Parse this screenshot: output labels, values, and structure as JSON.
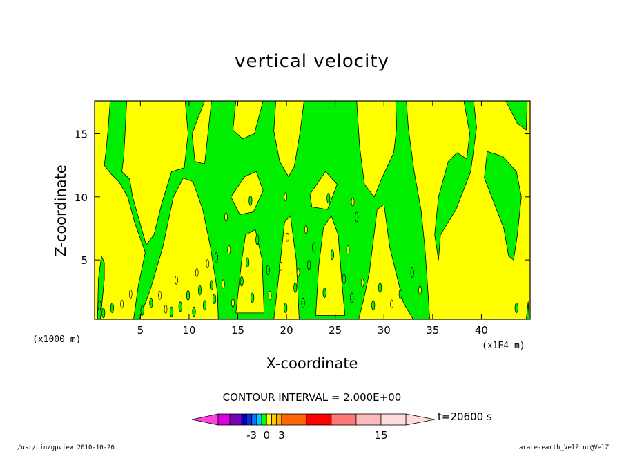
{
  "chart_data": {
    "type": "heatmap",
    "title": "vertical velocity",
    "xlabel": "X-coordinate",
    "ylabel": "Z-coordinate",
    "x_unit_left": "(x1000 m)",
    "x_unit_right": "(x1E4 m)",
    "xlim": [
      0.3,
      45
    ],
    "ylim": [
      0.3,
      17.6
    ],
    "x_ticks": [
      5,
      10,
      15,
      20,
      25,
      30,
      35,
      40
    ],
    "y_ticks": [
      5,
      10,
      15
    ],
    "contour_interval": "CONTOUR INTERVAL = 2.000E+00",
    "time_label": "t=20600 s",
    "colorbar": {
      "labels": [
        {
          "value": "-3",
          "at": -3
        },
        {
          "value": "0",
          "at": 0
        },
        {
          "value": "3",
          "at": 3
        },
        {
          "value": "15",
          "at": 15
        }
      ],
      "levels": [
        {
          "lo": -9,
          "hi": -7,
          "color": "#dd00dd"
        },
        {
          "lo": -7,
          "hi": -5,
          "color": "#7700bb"
        },
        {
          "lo": -5,
          "hi": -4,
          "color": "#0000bb"
        },
        {
          "lo": -4,
          "hi": -3,
          "color": "#0033dd"
        },
        {
          "lo": -3,
          "hi": -2,
          "color": "#0077ff"
        },
        {
          "lo": -2,
          "hi": -1,
          "color": "#00ccff"
        },
        {
          "lo": -1,
          "hi": 0,
          "color": "#00ff00"
        },
        {
          "lo": 0,
          "hi": 1,
          "color": "#ffff00"
        },
        {
          "lo": 1,
          "hi": 2,
          "color": "#ffcc00"
        },
        {
          "lo": 2,
          "hi": 3,
          "color": "#ffaa00"
        },
        {
          "lo": 3,
          "hi": 6,
          "color": "#ff6600"
        },
        {
          "lo": 6,
          "hi": 9,
          "color": "#ff0000"
        },
        {
          "lo": 9,
          "hi": 12,
          "color": "#ff7777"
        },
        {
          "lo": 12,
          "hi": 15,
          "color": "#ffbbbb"
        },
        {
          "lo": 15,
          "hi": 18,
          "color": "#ffdddd"
        }
      ],
      "left_arrow_color": "#ff44dd",
      "right_arrow_color": "#ffdddd"
    },
    "field_colors": {
      "positive": "#ffff00",
      "negative": "#00ee00"
    },
    "negative_regions_note_free": true,
    "negative_regions": [
      [
        [
          1.5,
          13.8
        ],
        [
          1.7,
          15.5
        ],
        [
          1.9,
          17.6
        ],
        [
          3.6,
          17.6
        ],
        [
          3.3,
          13.2
        ],
        [
          3.1,
          12.0
        ],
        [
          3.9,
          11.4
        ],
        [
          4.2,
          10.0
        ],
        [
          5.3,
          7.0
        ],
        [
          5.6,
          6.2
        ],
        [
          6.4,
          7.0
        ],
        [
          7.2,
          9.5
        ],
        [
          8.2,
          12.0
        ],
        [
          9.5,
          12.3
        ],
        [
          9.9,
          15.0
        ],
        [
          9.6,
          17.6
        ],
        [
          11.6,
          17.6
        ],
        [
          10.3,
          15.0
        ],
        [
          10.6,
          12.8
        ],
        [
          11.6,
          12.6
        ],
        [
          12.3,
          17.6
        ],
        [
          14.8,
          17.6
        ],
        [
          14.5,
          15.3
        ],
        [
          15.5,
          14.6
        ],
        [
          16.7,
          15.0
        ],
        [
          17.6,
          17.6
        ],
        [
          18.9,
          17.6
        ],
        [
          18.7,
          15.2
        ],
        [
          19.3,
          12.8
        ],
        [
          20.2,
          11.6
        ],
        [
          20.8,
          12.4
        ],
        [
          21.4,
          15.2
        ],
        [
          21.8,
          17.6
        ],
        [
          27.2,
          17.6
        ],
        [
          27.5,
          14.0
        ],
        [
          28.0,
          11.0
        ],
        [
          29.0,
          10.0
        ],
        [
          29.8,
          11.5
        ],
        [
          31.0,
          13.5
        ],
        [
          31.3,
          15.5
        ],
        [
          31.2,
          17.6
        ],
        [
          32.3,
          17.6
        ],
        [
          32.5,
          15.5
        ],
        [
          33.1,
          12.0
        ],
        [
          33.8,
          9.0
        ],
        [
          34.2,
          6.0
        ],
        [
          34.4,
          3.8
        ],
        [
          34.7,
          0.3
        ],
        [
          33.0,
          0.3
        ],
        [
          32.0,
          1.6
        ],
        [
          30.6,
          6.0
        ],
        [
          30.0,
          9.4
        ],
        [
          29.3,
          9.0
        ],
        [
          28.5,
          4.0
        ],
        [
          27.9,
          1.8
        ],
        [
          27.4,
          0.3
        ],
        [
          21.3,
          0.3
        ],
        [
          21.0,
          5.0
        ],
        [
          20.4,
          8.5
        ],
        [
          19.8,
          8.0
        ],
        [
          19.1,
          3.0
        ],
        [
          18.7,
          0.3
        ],
        [
          13.0,
          0.3
        ],
        [
          12.9,
          2.5
        ],
        [
          12.2,
          6.0
        ],
        [
          11.4,
          9.0
        ],
        [
          10.4,
          11.2
        ],
        [
          9.4,
          11.5
        ],
        [
          8.4,
          10.0
        ],
        [
          7.3,
          6.0
        ],
        [
          6.0,
          2.6
        ],
        [
          4.9,
          0.3
        ],
        [
          4.3,
          0.3
        ],
        [
          4.8,
          3.0
        ],
        [
          5.5,
          5.6
        ],
        [
          4.4,
          8.0
        ],
        [
          3.7,
          10.0
        ],
        [
          2.8,
          11.2
        ],
        [
          2.0,
          11.8
        ],
        [
          1.3,
          12.5
        ]
      ],
      [
        [
          38.2,
          17.6
        ],
        [
          38.8,
          15.0
        ],
        [
          38.5,
          13.0
        ],
        [
          37.5,
          13.5
        ],
        [
          36.6,
          12.8
        ],
        [
          35.6,
          10.0
        ],
        [
          35.2,
          7.0
        ],
        [
          35.6,
          5.0
        ],
        [
          35.8,
          7.0
        ],
        [
          37.4,
          9.0
        ],
        [
          38.9,
          12.0
        ],
        [
          39.5,
          15.5
        ],
        [
          39.2,
          17.6
        ]
      ],
      [
        [
          40.6,
          13.6
        ],
        [
          42.2,
          13.2
        ],
        [
          43.6,
          12.0
        ],
        [
          44.1,
          10.0
        ],
        [
          43.7,
          7.0
        ],
        [
          43.3,
          5.0
        ],
        [
          42.8,
          5.3
        ],
        [
          42.3,
          7.5
        ],
        [
          41.3,
          9.5
        ],
        [
          40.3,
          11.5
        ]
      ],
      [
        [
          42.5,
          17.6
        ],
        [
          43.7,
          15.8
        ],
        [
          44.6,
          15.3
        ],
        [
          44.7,
          17.6
        ]
      ],
      [
        [
          0.9,
          0.3
        ],
        [
          1.3,
          3.5
        ],
        [
          1.3,
          4.8
        ],
        [
          1.0,
          5.3
        ],
        [
          0.7,
          3.5
        ],
        [
          0.6,
          0.3
        ]
      ],
      [
        [
          44.6,
          0.3
        ],
        [
          44.8,
          1.7
        ],
        [
          44.9,
          0.3
        ]
      ]
    ],
    "positive_islands_in_negative": [
      [
        [
          14.8,
          0.8
        ],
        [
          15.4,
          5.0
        ],
        [
          15.8,
          7.0
        ],
        [
          16.8,
          7.4
        ],
        [
          17.5,
          5.0
        ],
        [
          17.7,
          0.8
        ]
      ],
      [
        [
          23.0,
          0.6
        ],
        [
          23.3,
          4.5
        ],
        [
          23.8,
          7.6
        ],
        [
          24.6,
          8.5
        ],
        [
          25.3,
          7.0
        ],
        [
          25.7,
          3.0
        ],
        [
          26.0,
          0.6
        ]
      ],
      [
        [
          14.3,
          10.0
        ],
        [
          15.7,
          11.6
        ],
        [
          16.9,
          12.0
        ],
        [
          17.6,
          10.5
        ],
        [
          16.6,
          8.8
        ],
        [
          15.2,
          8.6
        ]
      ],
      [
        [
          22.4,
          10.2
        ],
        [
          24.0,
          12.0
        ],
        [
          25.2,
          11.0
        ],
        [
          24.2,
          9.0
        ],
        [
          22.6,
          9.2
        ]
      ]
    ],
    "negative_specks": [
      [
        1.2,
        0.8
      ],
      [
        2.1,
        1.2
      ],
      [
        5.2,
        1.0
      ],
      [
        6.1,
        1.6
      ],
      [
        8.2,
        0.9
      ],
      [
        9.1,
        1.3
      ],
      [
        9.9,
        2.2
      ],
      [
        10.5,
        0.9
      ],
      [
        11.1,
        2.6
      ],
      [
        11.6,
        1.4
      ],
      [
        12.3,
        3.0
      ],
      [
        12.6,
        1.9
      ],
      [
        15.4,
        3.3
      ],
      [
        16.0,
        4.8
      ],
      [
        16.5,
        2.0
      ],
      [
        17.0,
        6.6
      ],
      [
        18.1,
        4.2
      ],
      [
        19.9,
        1.2
      ],
      [
        20.9,
        2.8
      ],
      [
        21.7,
        1.6
      ],
      [
        22.3,
        4.6
      ],
      [
        22.8,
        6.0
      ],
      [
        23.9,
        2.4
      ],
      [
        24.7,
        5.4
      ],
      [
        25.9,
        3.5
      ],
      [
        26.7,
        2.0
      ],
      [
        27.2,
        8.4
      ],
      [
        28.9,
        1.4
      ],
      [
        29.6,
        2.8
      ],
      [
        31.7,
        2.3
      ],
      [
        32.9,
        4.0
      ],
      [
        43.6,
        1.2
      ],
      [
        0.8,
        1.4
      ],
      [
        12.8,
        5.2
      ],
      [
        16.3,
        9.7
      ],
      [
        24.3,
        9.9
      ]
    ],
    "positive_specks": [
      [
        3.1,
        1.5
      ],
      [
        4.0,
        2.3
      ],
      [
        7.0,
        2.2
      ],
      [
        7.6,
        1.1
      ],
      [
        8.7,
        3.4
      ],
      [
        10.8,
        4.0
      ],
      [
        11.9,
        4.7
      ],
      [
        13.5,
        3.1
      ],
      [
        14.1,
        5.8
      ],
      [
        14.5,
        1.6
      ],
      [
        18.3,
        2.2
      ],
      [
        19.4,
        4.5
      ],
      [
        20.1,
        6.8
      ],
      [
        21.2,
        4.0
      ],
      [
        22.0,
        7.4
      ],
      [
        26.3,
        5.8
      ],
      [
        27.8,
        3.2
      ],
      [
        30.8,
        1.5
      ],
      [
        33.7,
        2.6
      ],
      [
        13.8,
        8.4
      ],
      [
        19.9,
        10.0
      ],
      [
        26.8,
        9.6
      ]
    ]
  },
  "footer": {
    "left": "/usr/bin/gpview   2010-10-26",
    "right": "arare-earth_VelZ.nc@VelZ"
  }
}
